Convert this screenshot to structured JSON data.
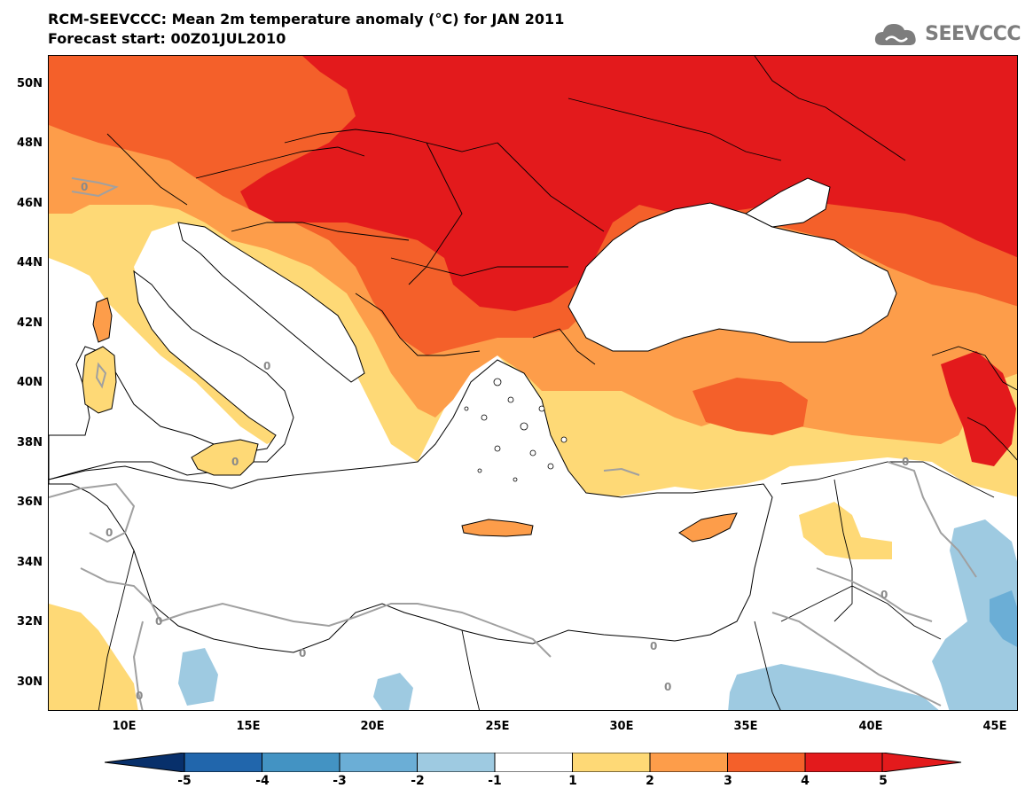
{
  "header": {
    "title": "RCM-SEEVCCC: Mean 2m temperature anomaly (°C) for JAN 2011",
    "subtitle": "Forecast start: 00Z01JUL2010"
  },
  "logo": {
    "text": "SEEVCCC",
    "icon": "cloud-icon",
    "color": "#7d7d7d"
  },
  "map": {
    "lat_labels": [
      "50N",
      "48N",
      "46N",
      "44N",
      "42N",
      "40N",
      "38N",
      "36N",
      "34N",
      "32N",
      "30N"
    ],
    "lon_labels": [
      "10E",
      "15E",
      "20E",
      "25E",
      "30E",
      "35E",
      "40E",
      "45E"
    ],
    "contour_labels": [
      "0",
      "0",
      "0",
      "0",
      "0",
      "0",
      "0",
      "0",
      "0",
      "0",
      "0"
    ]
  },
  "colorbar": {
    "labels": [
      "-5",
      "-4",
      "-3",
      "-2",
      "-1",
      "1",
      "2",
      "3",
      "4",
      "5"
    ],
    "colors": [
      "#08306b",
      "#2166ac",
      "#4393c3",
      "#6baed6",
      "#9ecae1",
      "#ffffff",
      "#fed976",
      "#fd9d4a",
      "#f4602a",
      "#e31a1c"
    ],
    "extend_low_color": "#08306b",
    "extend_high_color": "#e31a1c"
  }
}
